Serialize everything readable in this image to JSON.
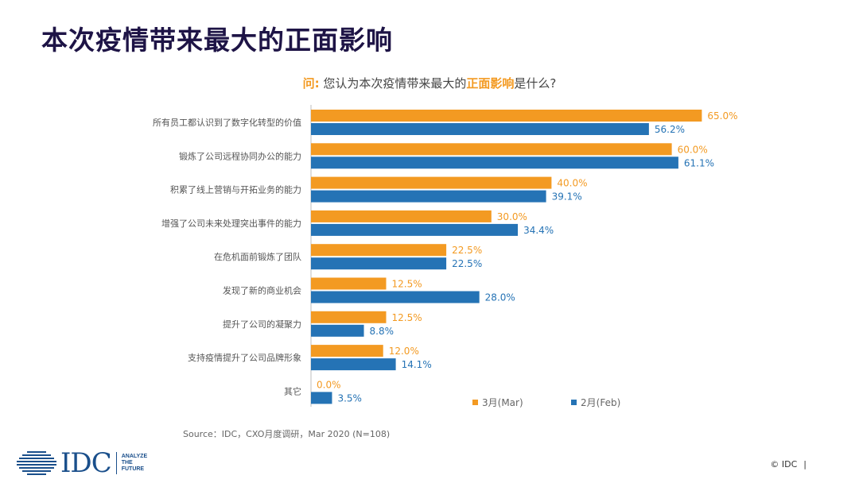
{
  "page": {
    "title": "本次疫情带来最大的正面影响",
    "question": {
      "label": "问:",
      "prefix": "您认为本次疫情带来最大的",
      "emphasis": "正面影响",
      "suffix": "是什么?"
    },
    "source": "Source：IDC，CXO月度调研，Mar  2020 (N=108)",
    "logo": {
      "text": "IDC",
      "tagline_1": "ANALYZE",
      "tagline_2": "THE",
      "tagline_3": "FUTURE"
    },
    "copyright": "© IDC",
    "copyright_bar": "|"
  },
  "chart_data": {
    "type": "bar",
    "orientation": "horizontal",
    "title": "您认为本次疫情带来最大的正面影响是什么?",
    "categories": [
      "所有员工都认识到了数字化转型的价值",
      "锻炼了公司远程协同办公的能力",
      "积累了线上营销与开拓业务的能力",
      "增强了公司未来处理突出事件的能力",
      "在危机面前锻炼了团队",
      "发现了新的商业机会",
      "提升了公司的凝聚力",
      "支持疫情提升了公司品牌形象",
      "其它"
    ],
    "series": [
      {
        "name": "3月(Mar)",
        "color": "#f39a22",
        "values": [
          65.0,
          60.0,
          40.0,
          30.0,
          22.5,
          12.5,
          12.5,
          12.0,
          0.0
        ],
        "labels": [
          "65.0%",
          "60.0%",
          "40.0%",
          "30.0%",
          "22.5%",
          "12.5%",
          "12.5%",
          "12.0%",
          "0.0%"
        ]
      },
      {
        "name": "2月(Feb)",
        "color": "#2573b5",
        "values": [
          56.2,
          61.1,
          39.1,
          34.4,
          22.5,
          28.0,
          8.8,
          14.1,
          3.5
        ],
        "labels": [
          "56.2%",
          "61.1%",
          "39.1%",
          "34.4%",
          "22.5%",
          "28.0%",
          "8.8%",
          "14.1%",
          "3.5%"
        ]
      }
    ],
    "xlim": [
      0,
      100
    ],
    "legend": "bottom-right",
    "grid": false
  }
}
